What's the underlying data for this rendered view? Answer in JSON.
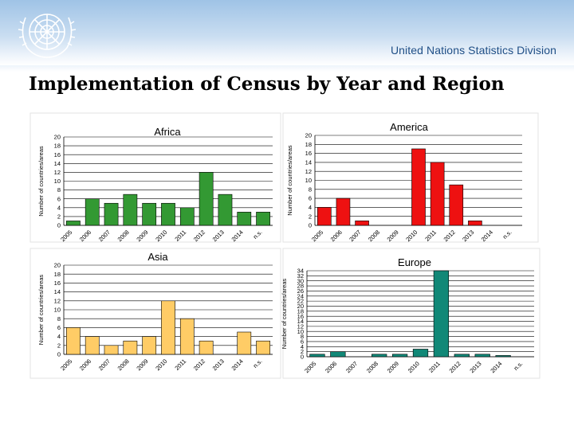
{
  "header": {
    "organization": "United Nations Statistics Division",
    "logo": "un-emblem-icon"
  },
  "slide": {
    "title": "Implementation of Census by Year and Region"
  },
  "chart_data": [
    {
      "type": "bar",
      "title": "Africa",
      "ylabel": "Number of countries/areas",
      "ylim": [
        0,
        20
      ],
      "yticks": [
        0,
        2,
        4,
        6,
        8,
        10,
        12,
        14,
        16,
        18,
        20
      ],
      "color": "#339933",
      "categories": [
        "2005",
        "2006",
        "2007",
        "2008",
        "2009",
        "2010",
        "2011",
        "2012",
        "2013",
        "2014",
        "n.s."
      ],
      "values": [
        1,
        6,
        5,
        7,
        5,
        5,
        4,
        12,
        7,
        3,
        3
      ]
    },
    {
      "type": "bar",
      "title": "America",
      "ylabel": "Number of countries/areas",
      "ylim": [
        0,
        20
      ],
      "yticks": [
        0,
        2,
        4,
        6,
        8,
        10,
        12,
        14,
        16,
        18,
        20
      ],
      "color": "#ee1111",
      "categories": [
        "2005",
        "2006",
        "2007",
        "2008",
        "2009",
        "2010",
        "2011",
        "2012",
        "2013",
        "2014",
        "n.s."
      ],
      "values": [
        4,
        6,
        1,
        0,
        0,
        17,
        14,
        9,
        1,
        0,
        0
      ]
    },
    {
      "type": "bar",
      "title": "Asia",
      "ylabel": "Number of countries/areas",
      "ylim": [
        0,
        20
      ],
      "yticks": [
        0,
        2,
        4,
        6,
        8,
        10,
        12,
        14,
        16,
        18,
        20
      ],
      "color": "#ffcc66",
      "categories": [
        "2005",
        "2006",
        "2007",
        "2008",
        "2009",
        "2010",
        "2011",
        "2012",
        "2013",
        "2014",
        "n.s."
      ],
      "values": [
        6,
        4,
        2,
        3,
        4,
        12,
        8,
        3,
        0,
        5,
        3
      ]
    },
    {
      "type": "bar",
      "title": "Europe",
      "ylabel": "Number of countries/areas",
      "ylim": [
        0,
        34
      ],
      "yticks": [
        0,
        2,
        4,
        6,
        8,
        10,
        12,
        14,
        16,
        18,
        20,
        22,
        24,
        26,
        28,
        30,
        32,
        34
      ],
      "color": "#118877",
      "categories": [
        "2005",
        "2006",
        "2007",
        "2008",
        "2009",
        "2010",
        "2011",
        "2012",
        "2013",
        "2014",
        "n.s."
      ],
      "values": [
        1,
        2,
        0,
        1,
        1,
        3,
        34,
        1,
        1,
        0.5,
        0
      ]
    }
  ]
}
